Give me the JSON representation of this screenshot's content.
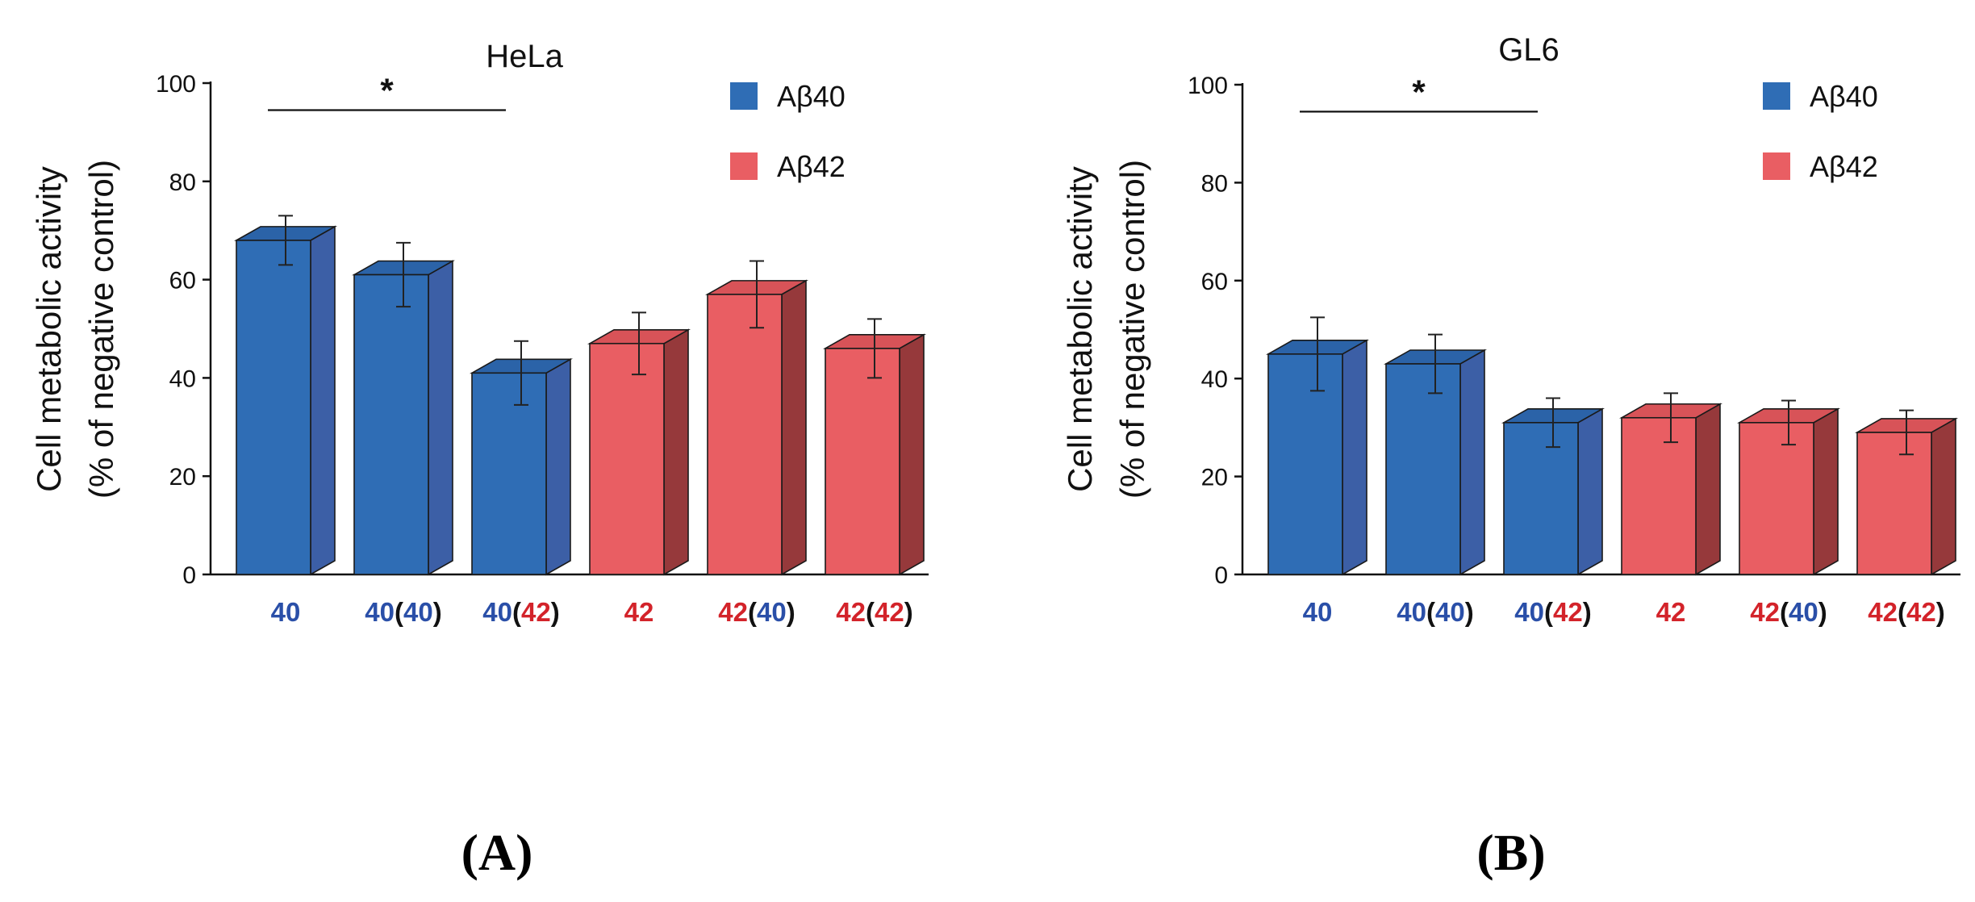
{
  "colors": {
    "ab40": "#2f6db5",
    "ab40_side": "#3c5fa6",
    "ab40_top": "#2b63a8",
    "ab42": "#e95e63",
    "ab42_side": "#96393b",
    "ab42_top": "#d85358",
    "label_blue": "#2a4fa8",
    "label_red": "#d3232a"
  },
  "legend": [
    {
      "label": "Aβ40",
      "series": "ab40"
    },
    {
      "label": "Aβ42",
      "series": "ab42"
    }
  ],
  "panel_labels": [
    "(A)",
    "(B)"
  ],
  "chart_data": [
    {
      "type": "bar",
      "title": "HeLa",
      "ylabel_line1": "Cell metabolic activity",
      "ylabel_line2": "(% of negative control)",
      "ylim": [
        0,
        100
      ],
      "yticks": [
        0,
        20,
        40,
        60,
        80,
        100
      ],
      "categories": [
        {
          "parts": [
            {
              "t": "40",
              "c": "blue"
            }
          ]
        },
        {
          "parts": [
            {
              "t": "40",
              "c": "blue"
            },
            {
              "t": "(",
              "c": "black"
            },
            {
              "t": "40",
              "c": "blue"
            },
            {
              "t": ")",
              "c": "black"
            }
          ]
        },
        {
          "parts": [
            {
              "t": "40",
              "c": "blue"
            },
            {
              "t": "(",
              "c": "black"
            },
            {
              "t": "42",
              "c": "red"
            },
            {
              "t": ")",
              "c": "black"
            }
          ]
        },
        {
          "parts": [
            {
              "t": "42",
              "c": "red"
            }
          ]
        },
        {
          "parts": [
            {
              "t": "42",
              "c": "red"
            },
            {
              "t": "(",
              "c": "black"
            },
            {
              "t": "40",
              "c": "blue"
            },
            {
              "t": ")",
              "c": "black"
            }
          ]
        },
        {
          "parts": [
            {
              "t": "42",
              "c": "red"
            },
            {
              "t": "(",
              "c": "black"
            },
            {
              "t": "42",
              "c": "red"
            },
            {
              "t": ")",
              "c": "black"
            }
          ]
        }
      ],
      "values": [
        68,
        61,
        41,
        47,
        57,
        46
      ],
      "errors": [
        5,
        6.5,
        6.5,
        6.3,
        6.8,
        6
      ],
      "series_of_bar": [
        "ab40",
        "ab40",
        "ab40",
        "ab42",
        "ab42",
        "ab42"
      ],
      "significance": {
        "from": 0,
        "to": 2,
        "label": "*"
      }
    },
    {
      "type": "bar",
      "title": "GL6",
      "ylabel_line1": "Cell metabolic activity",
      "ylabel_line2": "(% of negative control)",
      "ylim": [
        0,
        100
      ],
      "yticks": [
        0,
        20,
        40,
        60,
        80,
        100
      ],
      "categories": [
        {
          "parts": [
            {
              "t": "40",
              "c": "blue"
            }
          ]
        },
        {
          "parts": [
            {
              "t": "40",
              "c": "blue"
            },
            {
              "t": "(",
              "c": "black"
            },
            {
              "t": "40",
              "c": "blue"
            },
            {
              "t": ")",
              "c": "black"
            }
          ]
        },
        {
          "parts": [
            {
              "t": "40",
              "c": "blue"
            },
            {
              "t": "(",
              "c": "black"
            },
            {
              "t": "42",
              "c": "red"
            },
            {
              "t": ")",
              "c": "black"
            }
          ]
        },
        {
          "parts": [
            {
              "t": "42",
              "c": "red"
            }
          ]
        },
        {
          "parts": [
            {
              "t": "42",
              "c": "red"
            },
            {
              "t": "(",
              "c": "black"
            },
            {
              "t": "40",
              "c": "blue"
            },
            {
              "t": ")",
              "c": "black"
            }
          ]
        },
        {
          "parts": [
            {
              "t": "42",
              "c": "red"
            },
            {
              "t": "(",
              "c": "black"
            },
            {
              "t": "42",
              "c": "red"
            },
            {
              "t": ")",
              "c": "black"
            }
          ]
        }
      ],
      "values": [
        45,
        43,
        31,
        32,
        31,
        29
      ],
      "errors": [
        7.5,
        6,
        5,
        5,
        4.5,
        4.5
      ],
      "series_of_bar": [
        "ab40",
        "ab40",
        "ab40",
        "ab42",
        "ab42",
        "ab42"
      ],
      "significance": {
        "from": 0,
        "to": 2,
        "label": "*"
      }
    }
  ]
}
